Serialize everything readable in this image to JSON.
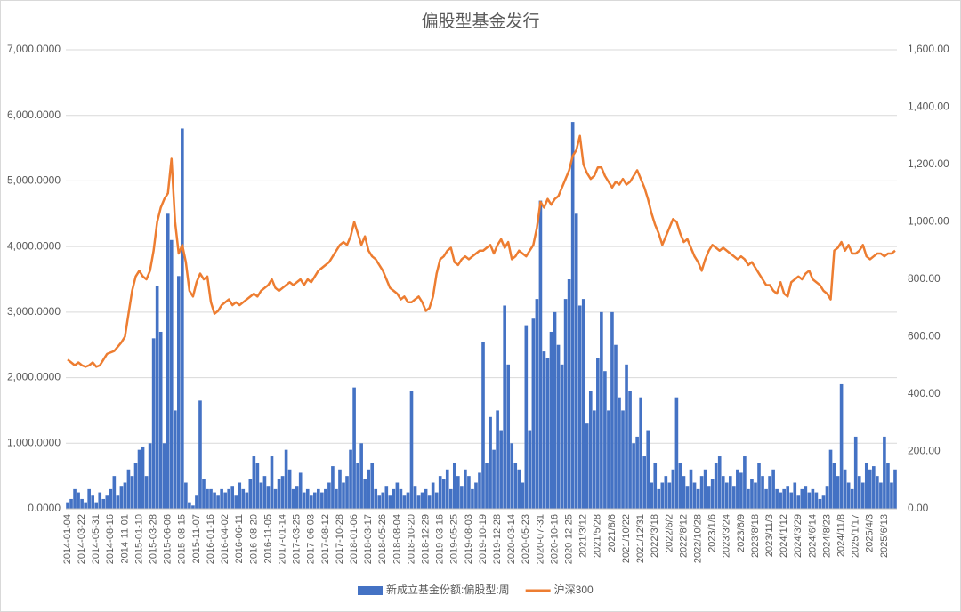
{
  "chart_data": {
    "type": "combo",
    "title": "偏股型基金发行",
    "categories": [
      "2014-01-04",
      null,
      null,
      null,
      "2014-03-22",
      null,
      null,
      null,
      "2014-05-31",
      null,
      null,
      null,
      "2014-08-16",
      null,
      null,
      null,
      "2014-11-01",
      null,
      null,
      null,
      "2015-01-10",
      null,
      null,
      null,
      "2015-03-28",
      null,
      null,
      null,
      "2015-06-06",
      null,
      null,
      null,
      "2015-08-15",
      null,
      null,
      null,
      "2015-11-07",
      null,
      null,
      null,
      "2016-01-16",
      null,
      null,
      null,
      "2016-04-02",
      null,
      null,
      null,
      "2016-06-11",
      null,
      null,
      null,
      "2016-08-20",
      null,
      null,
      null,
      "2016-11-05",
      null,
      null,
      null,
      "2017-01-14",
      null,
      null,
      null,
      "2017-03-25",
      null,
      null,
      null,
      "2017-06-03",
      null,
      null,
      null,
      "2017-08-12",
      null,
      null,
      null,
      "2017-10-28",
      null,
      null,
      null,
      "2018-01-06",
      null,
      null,
      null,
      "2018-03-17",
      null,
      null,
      null,
      "2018-05-26",
      null,
      null,
      null,
      "2018-08-04",
      null,
      null,
      null,
      "2018-10-20",
      null,
      null,
      null,
      "2018-12-29",
      null,
      null,
      null,
      "2019-03-16",
      null,
      null,
      null,
      "2019-05-25",
      null,
      null,
      null,
      "2019-08-03",
      null,
      null,
      null,
      "2019-10-19",
      null,
      null,
      null,
      "2019-12-28",
      null,
      null,
      null,
      "2020-03-14",
      null,
      null,
      null,
      "2020-05-23",
      null,
      null,
      null,
      "2020-07-31",
      null,
      null,
      null,
      "2020-10-16",
      null,
      null,
      null,
      "2020-12-25",
      null,
      null,
      null,
      "2021/3/12",
      null,
      null,
      null,
      "2021/5/28",
      null,
      null,
      null,
      "2021/8/6",
      null,
      null,
      null,
      "2021/10/22",
      null,
      null,
      null,
      "2021/12/31",
      null,
      null,
      null,
      "2022/3/18",
      null,
      null,
      null,
      "2022/6/2",
      null,
      null,
      null,
      "2022/8/12",
      null,
      null,
      null,
      "2022/10/28",
      null,
      null,
      null,
      "2023/1/6",
      null,
      null,
      null,
      "2023/3/24",
      null,
      null,
      null,
      "2023/6/9",
      null,
      null,
      null,
      "2023/8/18",
      null,
      null,
      null,
      "2023/11/3",
      null,
      null,
      null,
      "2024/1/12",
      null,
      null,
      null,
      "2024/3/29",
      null,
      null,
      null,
      "2024/6/14",
      null,
      null,
      null,
      "2024/8/23",
      null,
      null,
      null,
      "2024/11/8",
      null,
      null,
      null,
      "2025/1/17",
      null,
      null,
      null,
      "2025/4/3",
      null,
      null,
      null,
      "2025/6/13",
      null,
      null,
      null
    ],
    "series": [
      {
        "name": "新成立基金份额:偏股型:周",
        "type": "bar",
        "color": "#4472c4",
        "values": [
          100,
          150,
          300,
          250,
          150,
          100,
          300,
          200,
          100,
          250,
          150,
          200,
          300,
          500,
          200,
          350,
          400,
          600,
          500,
          700,
          900,
          950,
          500,
          1000,
          2600,
          3400,
          2700,
          1000,
          4500,
          4100,
          1500,
          3550,
          5800,
          400,
          100,
          50,
          200,
          1650,
          450,
          300,
          300,
          250,
          200,
          300,
          250,
          300,
          350,
          200,
          400,
          300,
          250,
          450,
          800,
          700,
          400,
          500,
          350,
          800,
          300,
          450,
          500,
          900,
          600,
          300,
          350,
          550,
          250,
          300,
          200,
          250,
          300,
          250,
          300,
          400,
          650,
          300,
          600,
          400,
          500,
          900,
          1850,
          700,
          1000,
          450,
          600,
          700,
          300,
          200,
          250,
          350,
          200,
          300,
          400,
          300,
          200,
          250,
          1800,
          350,
          200,
          250,
          300,
          200,
          400,
          250,
          500,
          450,
          600,
          300,
          700,
          500,
          350,
          600,
          500,
          300,
          400,
          550,
          2550,
          700,
          1400,
          900,
          1500,
          1200,
          3100,
          2200,
          1000,
          700,
          600,
          400,
          2800,
          1200,
          2900,
          3200,
          4700,
          2400,
          2300,
          2700,
          3000,
          2500,
          2200,
          3200,
          3500,
          5900,
          4500,
          3100,
          3200,
          1300,
          1800,
          1500,
          2300,
          3000,
          2100,
          1500,
          3000,
          2500,
          1700,
          1500,
          2200,
          1800,
          1000,
          1100,
          1700,
          800,
          1200,
          400,
          700,
          300,
          400,
          500,
          400,
          600,
          1700,
          700,
          500,
          350,
          600,
          400,
          300,
          500,
          600,
          350,
          450,
          700,
          800,
          500,
          400,
          500,
          350,
          600,
          550,
          800,
          300,
          450,
          400,
          700,
          500,
          300,
          500,
          600,
          300,
          250,
          300,
          350,
          250,
          400,
          200,
          300,
          350,
          250,
          300,
          250,
          150,
          200,
          350,
          900,
          700,
          500,
          1900,
          600,
          400,
          300,
          1100,
          500,
          400,
          700,
          600,
          650,
          500,
          400,
          1100,
          700,
          400,
          600
        ]
      },
      {
        "name": "沪深300",
        "type": "line",
        "axis": "y2",
        "color": "#ed7d31",
        "values": [
          520,
          510,
          500,
          510,
          500,
          495,
          500,
          510,
          495,
          500,
          520,
          540,
          545,
          550,
          565,
          580,
          600,
          680,
          760,
          810,
          830,
          810,
          800,
          830,
          900,
          1000,
          1050,
          1080,
          1100,
          1220,
          1000,
          890,
          920,
          860,
          760,
          740,
          790,
          820,
          800,
          810,
          720,
          680,
          690,
          710,
          720,
          730,
          710,
          720,
          710,
          720,
          730,
          740,
          750,
          740,
          760,
          770,
          780,
          800,
          770,
          760,
          770,
          780,
          790,
          780,
          790,
          800,
          780,
          800,
          790,
          810,
          830,
          840,
          850,
          860,
          880,
          900,
          920,
          930,
          920,
          950,
          1000,
          960,
          920,
          950,
          900,
          880,
          870,
          850,
          830,
          800,
          770,
          760,
          750,
          730,
          740,
          720,
          720,
          730,
          740,
          720,
          690,
          700,
          740,
          820,
          870,
          880,
          900,
          910,
          860,
          850,
          870,
          880,
          870,
          880,
          890,
          900,
          900,
          910,
          920,
          890,
          920,
          940,
          910,
          930,
          870,
          880,
          900,
          890,
          880,
          900,
          920,
          980,
          1070,
          1050,
          1080,
          1060,
          1080,
          1090,
          1120,
          1150,
          1180,
          1230,
          1250,
          1300,
          1200,
          1170,
          1150,
          1160,
          1190,
          1190,
          1160,
          1140,
          1120,
          1140,
          1130,
          1150,
          1130,
          1140,
          1160,
          1180,
          1150,
          1120,
          1080,
          1030,
          990,
          960,
          920,
          950,
          980,
          1010,
          1000,
          960,
          930,
          940,
          910,
          880,
          860,
          830,
          870,
          900,
          920,
          910,
          900,
          910,
          900,
          890,
          880,
          870,
          880,
          870,
          850,
          860,
          840,
          820,
          800,
          780,
          780,
          760,
          750,
          790,
          750,
          740,
          790,
          800,
          810,
          800,
          820,
          830,
          800,
          790,
          780,
          760,
          750,
          730,
          900,
          910,
          930,
          900,
          920,
          890,
          890,
          900,
          920,
          880,
          870,
          880,
          890,
          890,
          880,
          890,
          890,
          900
        ]
      }
    ],
    "ylim": [
      0,
      7000
    ],
    "yticks": [
      {
        "value": 0,
        "label": "0.0000"
      },
      {
        "value": 1000,
        "label": "1,000.0000"
      },
      {
        "value": 2000,
        "label": "2,000.0000"
      },
      {
        "value": 3000,
        "label": "3,000.0000"
      },
      {
        "value": 4000,
        "label": "4,000.0000"
      },
      {
        "value": 5000,
        "label": "5,000.0000"
      },
      {
        "value": 6000,
        "label": "6,000.0000"
      },
      {
        "value": 7000,
        "label": "7,000.0000"
      }
    ],
    "y2lim": [
      0,
      1600
    ],
    "y2ticks": [
      {
        "value": 0,
        "label": "0.00"
      },
      {
        "value": 200,
        "label": "200.00"
      },
      {
        "value": 400,
        "label": "400.00"
      },
      {
        "value": 600,
        "label": "600.00"
      },
      {
        "value": 800,
        "label": "800.00"
      },
      {
        "value": 1000,
        "label": "1,000.00"
      },
      {
        "value": 1200,
        "label": "1,200.00"
      },
      {
        "value": 1400,
        "label": "1,400.00"
      },
      {
        "value": 1600,
        "label": "1,600.00"
      }
    ],
    "grid": true,
    "legend": "bottom"
  }
}
